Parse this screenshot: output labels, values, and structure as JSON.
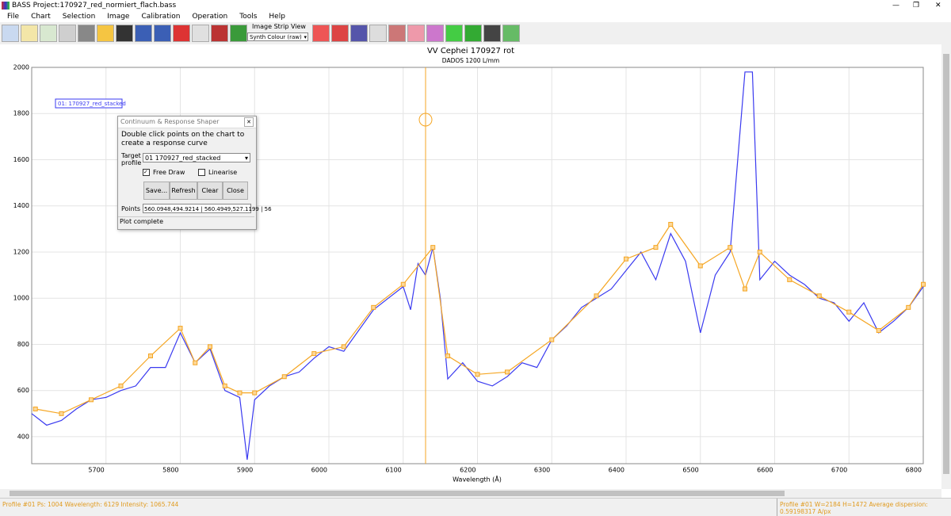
{
  "window": {
    "title": "BASS Project:170927_red_normiert_flach.bass"
  },
  "menu": [
    "File",
    "Chart",
    "Selection",
    "Image",
    "Calibration",
    "Operation",
    "Tools",
    "Help"
  ],
  "toolbar": {
    "strip_label": "Image Strip View",
    "strip_select": "Synth Colour (raw)"
  },
  "dialog": {
    "title": "Continuum & Response Shaper",
    "instruction": "Double click points on the chart to create a response curve",
    "target_label": "Target profile",
    "target_value": "01 170927_red_stacked",
    "free_draw": "Free Draw",
    "linearise": "Linearise",
    "buttons": [
      "Save...",
      "Refresh",
      "Clear",
      "Close"
    ],
    "points_label": "Points",
    "points_value": "560.0948,494.9214 | 560.4949,527.1199 | 56",
    "status": "Plot complete"
  },
  "status_bar": {
    "left": "Profile #01  Ps: 1004  Wavelength: 6129  Intensity: 1065.744",
    "right": "Profile #01 W=2184 H=1472  Average dispersion: 0.59198317 A/px"
  },
  "chart_data": {
    "type": "line",
    "title": "VV Cephei 170927 rot",
    "subtitle": "DADOS 1200 L/mm",
    "x_label": "Wavelength (Å)",
    "xlim": [
      5600,
      6800
    ],
    "ylim": [
      283,
      2000
    ],
    "xticks": [
      5700,
      5800,
      5900,
      6000,
      6100,
      6200,
      6300,
      6400,
      6500,
      6600,
      6700,
      6800
    ],
    "yticks": [
      400,
      600,
      800,
      1000,
      1200,
      1400,
      1600,
      1800,
      2000
    ],
    "grid": true,
    "legend": "top-left",
    "series": [
      {
        "name": "01: 170927_red_stacked",
        "color": "#3a3af0",
        "x": [
          5600,
          5620,
          5640,
          5660,
          5680,
          5700,
          5720,
          5740,
          5760,
          5780,
          5800,
          5820,
          5840,
          5860,
          5880,
          5890,
          5900,
          5920,
          5940,
          5960,
          5980,
          6000,
          6020,
          6040,
          6060,
          6080,
          6100,
          6110,
          6120,
          6130,
          6140,
          6150,
          6160,
          6180,
          6200,
          6220,
          6240,
          6260,
          6280,
          6300,
          6320,
          6340,
          6360,
          6380,
          6400,
          6420,
          6440,
          6460,
          6480,
          6500,
          6520,
          6540,
          6560,
          6570,
          6580,
          6600,
          6620,
          6640,
          6660,
          6680,
          6700,
          6720,
          6740,
          6760,
          6780,
          6800
        ],
        "values": [
          500,
          450,
          470,
          520,
          560,
          570,
          600,
          620,
          700,
          700,
          850,
          720,
          780,
          600,
          570,
          300,
          560,
          620,
          660,
          680,
          740,
          790,
          770,
          860,
          950,
          1000,
          1050,
          950,
          1150,
          1100,
          1220,
          1000,
          650,
          720,
          640,
          620,
          660,
          720,
          700,
          820,
          880,
          960,
          1000,
          1040,
          1120,
          1200,
          1080,
          1280,
          1160,
          850,
          1100,
          1200,
          1980,
          1980,
          1080,
          1160,
          1100,
          1060,
          1000,
          980,
          900,
          980,
          850,
          900,
          960,
          1050
        ]
      },
      {
        "color": "#f5a623",
        "markers": true,
        "x": [
          5605,
          5640,
          5680,
          5720,
          5760,
          5800,
          5820,
          5840,
          5860,
          5880,
          5900,
          5940,
          5980,
          6020,
          6060,
          6100,
          6140,
          6160,
          6200,
          6240,
          6300,
          6360,
          6400,
          6440,
          6460,
          6500,
          6540,
          6560,
          6580,
          6620,
          6660,
          6700,
          6740,
          6780,
          6800
        ],
        "values": [
          520,
          500,
          560,
          620,
          750,
          870,
          720,
          790,
          620,
          590,
          590,
          660,
          760,
          790,
          960,
          1060,
          1220,
          750,
          670,
          680,
          820,
          1010,
          1170,
          1220,
          1320,
          1140,
          1220,
          1040,
          1200,
          1080,
          1010,
          940,
          860,
          960,
          1060
        ]
      }
    ]
  }
}
